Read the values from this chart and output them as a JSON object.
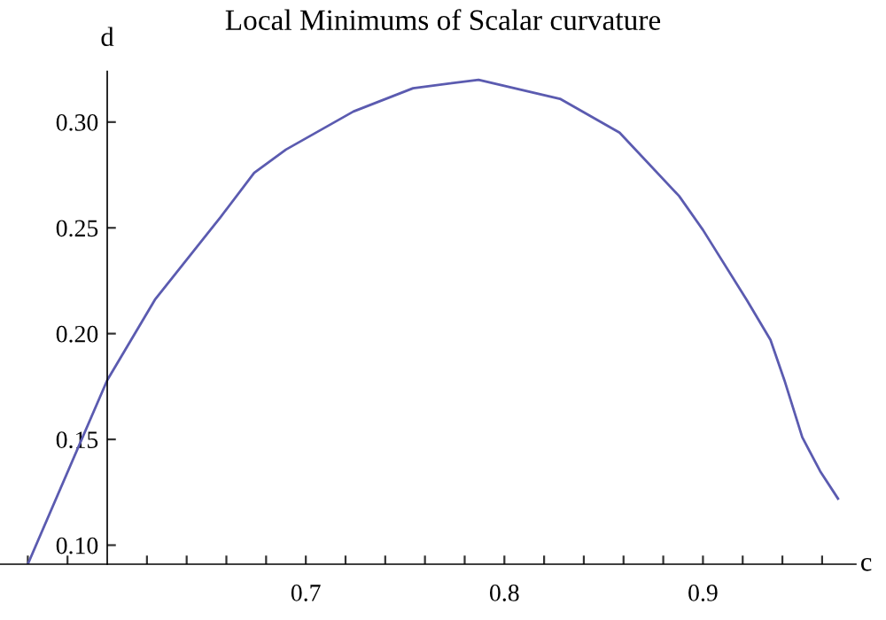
{
  "chart_data": {
    "type": "line",
    "title": "Local Minimums of Scalar curvature",
    "xlabel": "c",
    "ylabel": "d",
    "x": [
      0.56,
      0.6,
      0.624,
      0.657,
      0.674,
      0.69,
      0.724,
      0.754,
      0.787,
      0.828,
      0.858,
      0.888,
      0.9,
      0.922,
      0.934,
      0.941,
      0.95,
      0.959,
      0.968
    ],
    "series": [
      {
        "color": "#5b5bb0",
        "values": [
          0.091,
          0.178,
          0.216,
          0.255,
          0.276,
          0.287,
          0.305,
          0.316,
          0.32,
          0.311,
          0.295,
          0.265,
          0.249,
          0.216,
          0.197,
          0.178,
          0.151,
          0.135,
          0.122
        ]
      }
    ],
    "xlim": [
      0.546,
      0.977
    ],
    "ylim": [
      0.091,
      0.324
    ],
    "xticks": [
      {
        "value": 0.56,
        "label": null
      },
      {
        "value": 0.58,
        "label": null
      },
      {
        "value": 0.62,
        "label": null
      },
      {
        "value": 0.64,
        "label": null
      },
      {
        "value": 0.66,
        "label": null
      },
      {
        "value": 0.68,
        "label": null
      },
      0.7,
      {
        "value": 0.72,
        "label": null
      },
      {
        "value": 0.74,
        "label": null
      },
      {
        "value": 0.76,
        "label": null
      },
      {
        "value": 0.78,
        "label": null
      },
      0.8,
      {
        "value": 0.82,
        "label": null
      },
      {
        "value": 0.84,
        "label": null
      },
      {
        "value": 0.86,
        "label": null
      },
      {
        "value": 0.88,
        "label": null
      },
      0.9,
      {
        "value": 0.92,
        "label": null
      },
      {
        "value": 0.94,
        "label": null
      },
      {
        "value": 0.96,
        "label": null
      }
    ],
    "yticks": [
      {
        "value": 0.1,
        "label": "0.10"
      },
      {
        "value": 0.15,
        "label": "0.15"
      },
      {
        "value": 0.2,
        "label": "0.20"
      },
      {
        "value": 0.25,
        "label": "0.25"
      },
      {
        "value": 0.3,
        "label": "0.30"
      }
    ],
    "grid": false,
    "legend": false,
    "marker": "none",
    "line_style": "solid"
  }
}
